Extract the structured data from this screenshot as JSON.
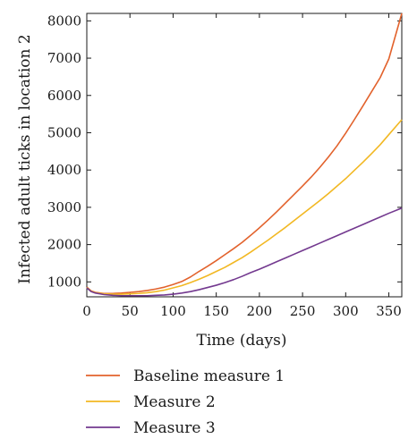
{
  "chart_data": {
    "type": "line",
    "xlabel": "Time (days)",
    "ylabel": "Infected adult ticks in location 2",
    "xlim": [
      0,
      365
    ],
    "ylim": [
      600,
      8200
    ],
    "xticks": [
      0,
      50,
      100,
      150,
      200,
      250,
      300,
      350
    ],
    "yticks": [
      1000,
      2000,
      3000,
      4000,
      5000,
      6000,
      7000,
      8000
    ],
    "grid": false,
    "legend_position": "bottom",
    "x": [
      0,
      5,
      10,
      20,
      30,
      40,
      50,
      60,
      70,
      80,
      90,
      100,
      110,
      120,
      130,
      140,
      150,
      160,
      170,
      180,
      190,
      200,
      210,
      220,
      230,
      240,
      250,
      260,
      270,
      280,
      290,
      300,
      310,
      320,
      330,
      340,
      350,
      365
    ],
    "series": [
      {
        "name": "Baseline measure 1",
        "color": "#e2622c",
        "values": [
          860,
          760,
          720,
          690,
          690,
          700,
          720,
          740,
          770,
          810,
          860,
          930,
          1010,
          1130,
          1280,
          1420,
          1570,
          1730,
          1890,
          2060,
          2250,
          2450,
          2660,
          2880,
          3110,
          3340,
          3570,
          3810,
          4070,
          4350,
          4650,
          4990,
          5350,
          5720,
          6100,
          6480,
          6980,
          8200
        ]
      },
      {
        "name": "Measure 2",
        "color": "#f2b823",
        "values": [
          850,
          750,
          710,
          680,
          670,
          670,
          680,
          690,
          710,
          740,
          780,
          840,
          900,
          980,
          1070,
          1170,
          1280,
          1390,
          1520,
          1650,
          1800,
          1960,
          2120,
          2290,
          2460,
          2640,
          2820,
          3000,
          3180,
          3370,
          3570,
          3770,
          3990,
          4210,
          4440,
          4680,
          4950,
          5350
        ]
      },
      {
        "name": "Measure 3",
        "color": "#73398f",
        "values": [
          840,
          740,
          700,
          660,
          640,
          630,
          630,
          630,
          630,
          640,
          650,
          670,
          700,
          740,
          790,
          850,
          910,
          980,
          1060,
          1150,
          1250,
          1340,
          1440,
          1540,
          1640,
          1740,
          1840,
          1940,
          2040,
          2140,
          2240,
          2340,
          2440,
          2540,
          2640,
          2740,
          2840,
          2980
        ]
      }
    ]
  }
}
